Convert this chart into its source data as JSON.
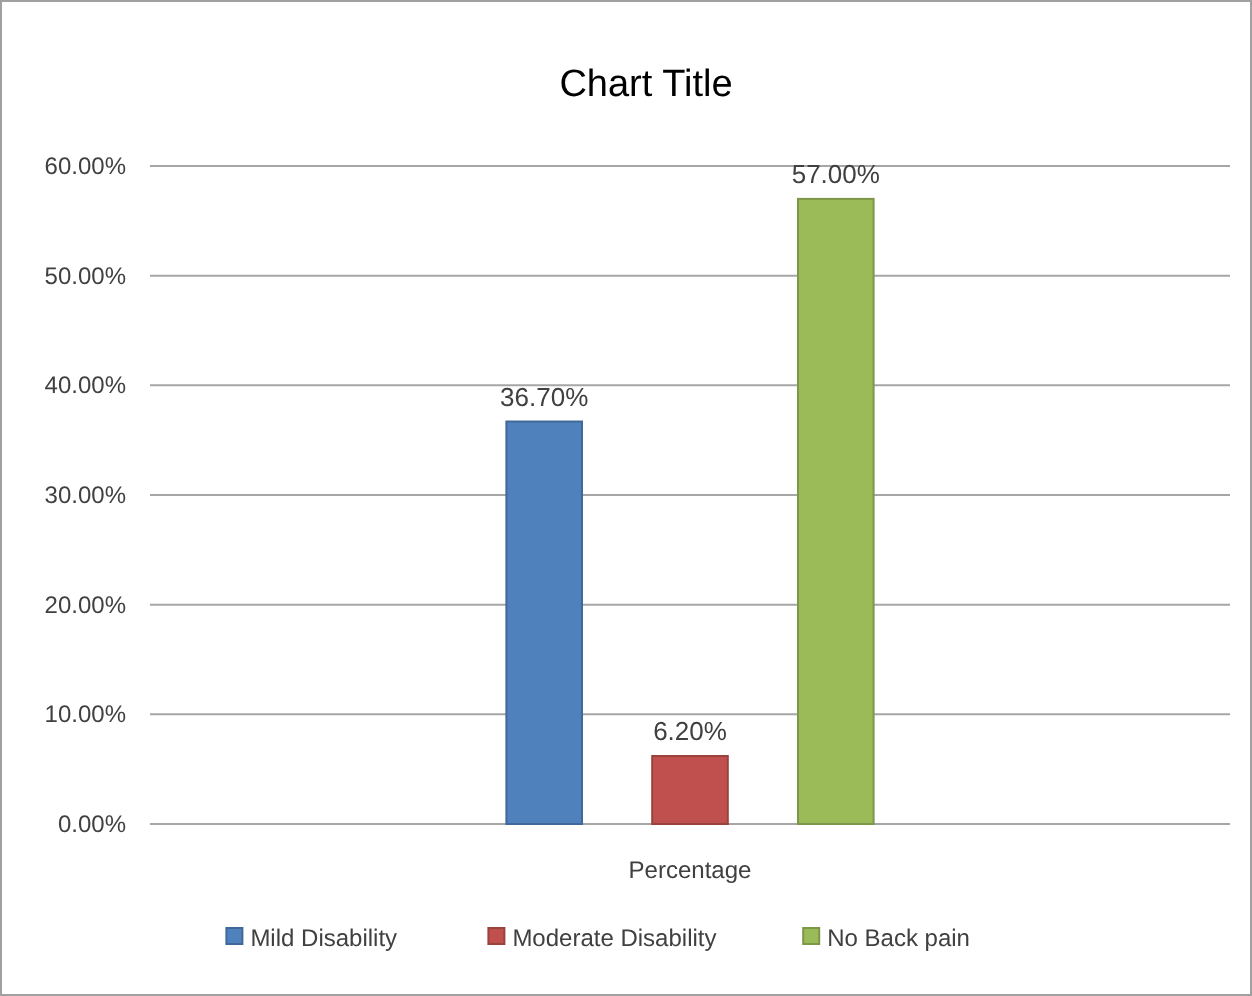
{
  "chart_data": {
    "type": "bar",
    "title": "Chart Title",
    "categories": [
      "Percentage"
    ],
    "series": [
      {
        "name": "Mild Disability",
        "color": "#4f81bd",
        "values": [
          36.7
        ],
        "value_labels": [
          "36.70%"
        ]
      },
      {
        "name": "Moderate Disability",
        "color": "#c0504d",
        "values": [
          6.2
        ],
        "value_labels": [
          "6.20%"
        ]
      },
      {
        "name": "No Back pain",
        "color": "#9bbb59",
        "values": [
          57.0
        ],
        "value_labels": [
          "57.00%"
        ]
      }
    ],
    "ylim": [
      0,
      60
    ],
    "yticks": [
      {
        "value": 0,
        "label": "0.00%"
      },
      {
        "value": 10,
        "label": "10.00%"
      },
      {
        "value": 20,
        "label": "20.00%"
      },
      {
        "value": 30,
        "label": "30.00%"
      },
      {
        "value": 40,
        "label": "40.00%"
      },
      {
        "value": 50,
        "label": "50.00%"
      },
      {
        "value": 60,
        "label": "60.00%"
      }
    ],
    "grid": "y",
    "legend": "bottom"
  }
}
